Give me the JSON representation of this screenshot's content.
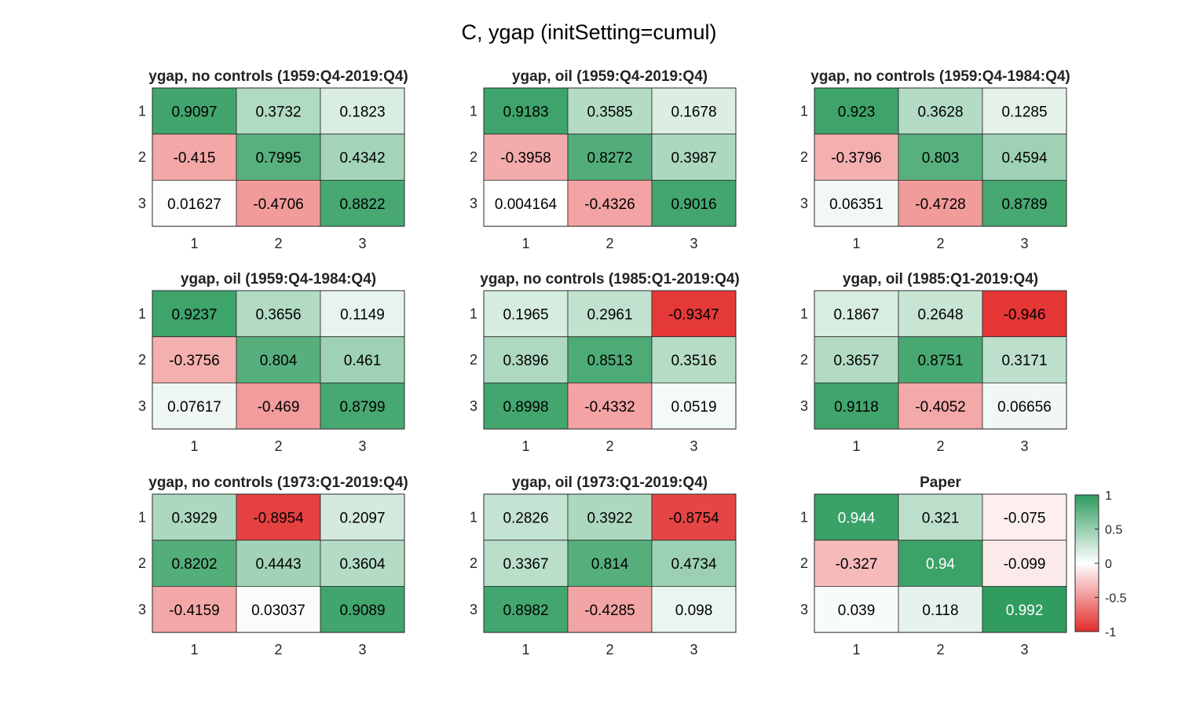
{
  "chart_data": {
    "type": "heatmap",
    "title": "C, ygap (initSetting=cumul)",
    "color_scale": {
      "min": -1,
      "max": 1,
      "low_color": "#e32b2b",
      "mid_color": "#ffffff",
      "high_color": "#2e9c5e"
    },
    "colorbar": {
      "ticks": [
        1,
        0.5,
        0,
        -0.5,
        -1
      ],
      "tick_labels": [
        "1",
        "0.5",
        "0",
        "-0.5",
        "-1"
      ],
      "placement": "right of last panel"
    },
    "panels": [
      {
        "title": "ygap, no controls (1959:Q4-2019:Q4)",
        "x_ticks": [
          "1",
          "2",
          "3"
        ],
        "y_ticks": [
          "1",
          "2",
          "3"
        ],
        "matrix": [
          [
            0.9097,
            0.3732,
            0.1823
          ],
          [
            -0.415,
            0.7995,
            0.4342
          ],
          [
            0.01627,
            -0.4706,
            0.8822
          ]
        ],
        "labels": [
          [
            "0.9097",
            "0.3732",
            "0.1823"
          ],
          [
            "-0.415",
            "0.7995",
            "0.4342"
          ],
          [
            "0.01627",
            "-0.4706",
            "0.8822"
          ]
        ]
      },
      {
        "title": "ygap, oil (1959:Q4-2019:Q4)",
        "x_ticks": [
          "1",
          "2",
          "3"
        ],
        "y_ticks": [
          "1",
          "2",
          "3"
        ],
        "matrix": [
          [
            0.9183,
            0.3585,
            0.1678
          ],
          [
            -0.3958,
            0.8272,
            0.3987
          ],
          [
            0.004164,
            -0.4326,
            0.9016
          ]
        ],
        "labels": [
          [
            "0.9183",
            "0.3585",
            "0.1678"
          ],
          [
            "-0.3958",
            "0.8272",
            "0.3987"
          ],
          [
            "0.004164",
            "-0.4326",
            "0.9016"
          ]
        ]
      },
      {
        "title": "ygap, no controls (1959:Q4-1984:Q4)",
        "x_ticks": [
          "1",
          "2",
          "3"
        ],
        "y_ticks": [
          "1",
          "2",
          "3"
        ],
        "matrix": [
          [
            0.923,
            0.3628,
            0.1285
          ],
          [
            -0.3796,
            0.803,
            0.4594
          ],
          [
            0.06351,
            -0.4728,
            0.8789
          ]
        ],
        "labels": [
          [
            "0.923",
            "0.3628",
            "0.1285"
          ],
          [
            "-0.3796",
            "0.803",
            "0.4594"
          ],
          [
            "0.06351",
            "-0.4728",
            "0.8789"
          ]
        ]
      },
      {
        "title": "ygap, oil (1959:Q4-1984:Q4)",
        "x_ticks": [
          "1",
          "2",
          "3"
        ],
        "y_ticks": [
          "1",
          "2",
          "3"
        ],
        "matrix": [
          [
            0.9237,
            0.3656,
            0.1149
          ],
          [
            -0.3756,
            0.804,
            0.461
          ],
          [
            0.07617,
            -0.469,
            0.8799
          ]
        ],
        "labels": [
          [
            "0.9237",
            "0.3656",
            "0.1149"
          ],
          [
            "-0.3756",
            "0.804",
            "0.461"
          ],
          [
            "0.07617",
            "-0.469",
            "0.8799"
          ]
        ]
      },
      {
        "title": "ygap, no controls (1985:Q1-2019:Q4)",
        "x_ticks": [
          "1",
          "2",
          "3"
        ],
        "y_ticks": [
          "1",
          "2",
          "3"
        ],
        "matrix": [
          [
            0.1965,
            0.2961,
            -0.9347
          ],
          [
            0.3896,
            0.8513,
            0.3516
          ],
          [
            0.8998,
            -0.4332,
            0.0519
          ]
        ],
        "labels": [
          [
            "0.1965",
            "0.2961",
            "-0.9347"
          ],
          [
            "0.3896",
            "0.8513",
            "0.3516"
          ],
          [
            "0.8998",
            "-0.4332",
            "0.0519"
          ]
        ]
      },
      {
        "title": "ygap, oil (1985:Q1-2019:Q4)",
        "x_ticks": [
          "1",
          "2",
          "3"
        ],
        "y_ticks": [
          "1",
          "2",
          "3"
        ],
        "matrix": [
          [
            0.1867,
            0.2648,
            -0.946
          ],
          [
            0.3657,
            0.8751,
            0.3171
          ],
          [
            0.9118,
            -0.4052,
            0.06656
          ]
        ],
        "labels": [
          [
            "0.1867",
            "0.2648",
            "-0.946"
          ],
          [
            "0.3657",
            "0.8751",
            "0.3171"
          ],
          [
            "0.9118",
            "-0.4052",
            "0.06656"
          ]
        ]
      },
      {
        "title": "ygap, no controls (1973:Q1-2019:Q4)",
        "x_ticks": [
          "1",
          "2",
          "3"
        ],
        "y_ticks": [
          "1",
          "2",
          "3"
        ],
        "matrix": [
          [
            0.3929,
            -0.8954,
            0.2097
          ],
          [
            0.8202,
            0.4443,
            0.3604
          ],
          [
            -0.4159,
            0.03037,
            0.9089
          ]
        ],
        "labels": [
          [
            "0.3929",
            "-0.8954",
            "0.2097"
          ],
          [
            "0.8202",
            "0.4443",
            "0.3604"
          ],
          [
            "-0.4159",
            "0.03037",
            "0.9089"
          ]
        ]
      },
      {
        "title": "ygap, oil (1973:Q1-2019:Q4)",
        "x_ticks": [
          "1",
          "2",
          "3"
        ],
        "y_ticks": [
          "1",
          "2",
          "3"
        ],
        "matrix": [
          [
            0.2826,
            0.3922,
            -0.8754
          ],
          [
            0.3367,
            0.814,
            0.4734
          ],
          [
            0.8982,
            -0.4285,
            0.098
          ]
        ],
        "labels": [
          [
            "0.2826",
            "0.3922",
            "-0.8754"
          ],
          [
            "0.3367",
            "0.814",
            "0.4734"
          ],
          [
            "0.8982",
            "-0.4285",
            "0.098"
          ]
        ]
      },
      {
        "title": "Paper",
        "x_ticks": [
          "1",
          "2",
          "3"
        ],
        "y_ticks": [
          "1",
          "2",
          "3"
        ],
        "matrix": [
          [
            0.944,
            0.321,
            -0.075
          ],
          [
            -0.327,
            0.94,
            -0.099
          ],
          [
            0.039,
            0.118,
            0.992
          ]
        ],
        "labels": [
          [
            "0.944",
            "0.321",
            "-0.075"
          ],
          [
            "-0.327",
            "0.94",
            "-0.099"
          ],
          [
            "0.039",
            "0.118",
            "0.992"
          ]
        ],
        "light_text_on_dark": true
      }
    ]
  }
}
